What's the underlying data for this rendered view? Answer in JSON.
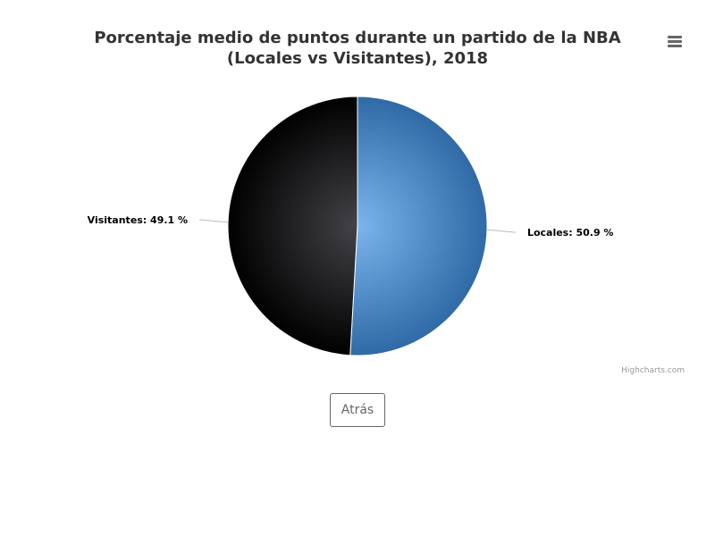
{
  "chart_data": {
    "type": "pie",
    "title": "Porcentaje medio de puntos durante un partido de la NBA (Locales vs Visitantes), 2018",
    "slices": [
      {
        "name": "Locales",
        "value": 50.9,
        "label": "Locales: 50.9 %",
        "color": "#6fa8e6"
      },
      {
        "name": "Visitantes",
        "value": 49.1,
        "label": "Visitantes: 49.1 %",
        "color": "#2b2b2e"
      }
    ],
    "legend": "none",
    "colors": {
      "locales_gradient": [
        "#7cb5ec",
        "#2f6aa6"
      ],
      "visitantes_gradient": [
        "#434348",
        "#000000"
      ]
    }
  },
  "credits": "Highcharts.com",
  "menu_icon": "hamburger-menu-icon",
  "back_button_label": "Atrás"
}
